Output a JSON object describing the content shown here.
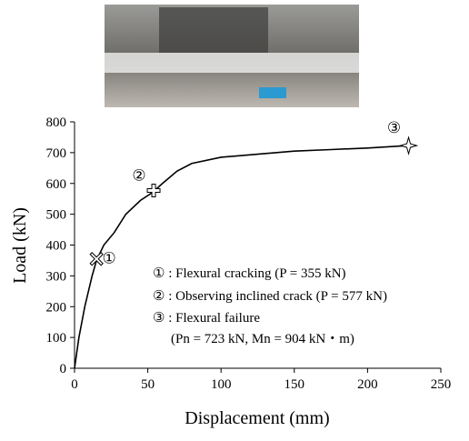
{
  "chart_data": {
    "type": "line",
    "x_label": "Displacement  (mm)",
    "y_label": "Load (kN)",
    "xlim": [
      0,
      250
    ],
    "xticks": [
      0,
      50,
      100,
      150,
      200,
      250
    ],
    "ylim": [
      0,
      800
    ],
    "yticks": [
      0,
      100,
      200,
      300,
      400,
      500,
      600,
      700,
      800
    ],
    "series": [
      {
        "color": "#000000",
        "x": [
          0,
          3,
          7,
          12,
          15,
          20,
          27,
          35,
          45,
          53,
          60,
          70,
          80,
          100,
          125,
          150,
          175,
          200,
          228
        ],
        "values": [
          0,
          100,
          200,
          300,
          350,
          400,
          440,
          500,
          545,
          570,
          600,
          640,
          665,
          685,
          695,
          705,
          710,
          715,
          723
        ]
      }
    ],
    "markers": {
      "x": [
        15,
        54,
        228
      ],
      "values": [
        355,
        577,
        723
      ],
      "labels": [
        "①",
        "②",
        "③"
      ]
    },
    "annotations": [
      "① : Flexural cracking (P = 355 kN)",
      "② : Observing inclined crack (P = 577 kN)",
      "③ : Flexural failure",
      "(Pn = 723 kN, Mn = 904 kN・m)"
    ]
  }
}
